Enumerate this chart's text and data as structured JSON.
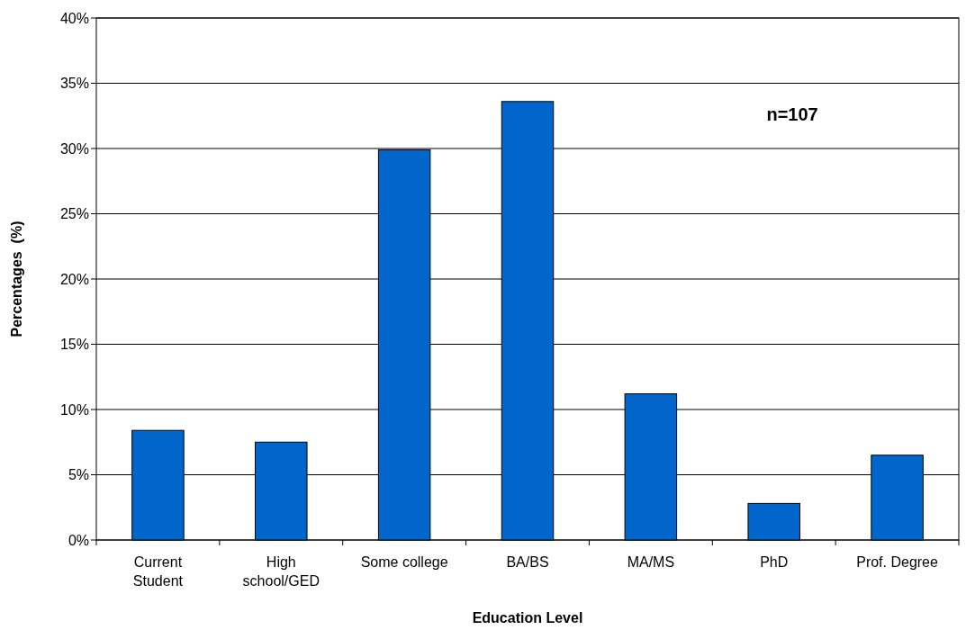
{
  "chart_data": {
    "type": "bar",
    "xlabel": "Education Level",
    "ylabel": "Percentages  (%)",
    "categories": [
      "Current Student",
      "High school/GED",
      "Some college",
      "BA/BS",
      "MA/MS",
      "PhD",
      "Prof. Degree"
    ],
    "values": [
      8.4,
      7.5,
      29.9,
      33.6,
      11.2,
      2.8,
      6.5
    ],
    "color": "#0066cc",
    "ylim": [
      0,
      40
    ],
    "yticks": [
      {
        "value": 0,
        "label": "0%"
      },
      {
        "value": 5,
        "label": "5%"
      },
      {
        "value": 10,
        "label": "10%"
      },
      {
        "value": 15,
        "label": "15%"
      },
      {
        "value": 20,
        "label": "20%"
      },
      {
        "value": 25,
        "label": "25%"
      },
      {
        "value": 30,
        "label": "30%"
      },
      {
        "value": 35,
        "label": "35%"
      },
      {
        "value": 40,
        "label": "40%"
      }
    ],
    "grid": "y",
    "annotations": [
      "n=107"
    ]
  }
}
